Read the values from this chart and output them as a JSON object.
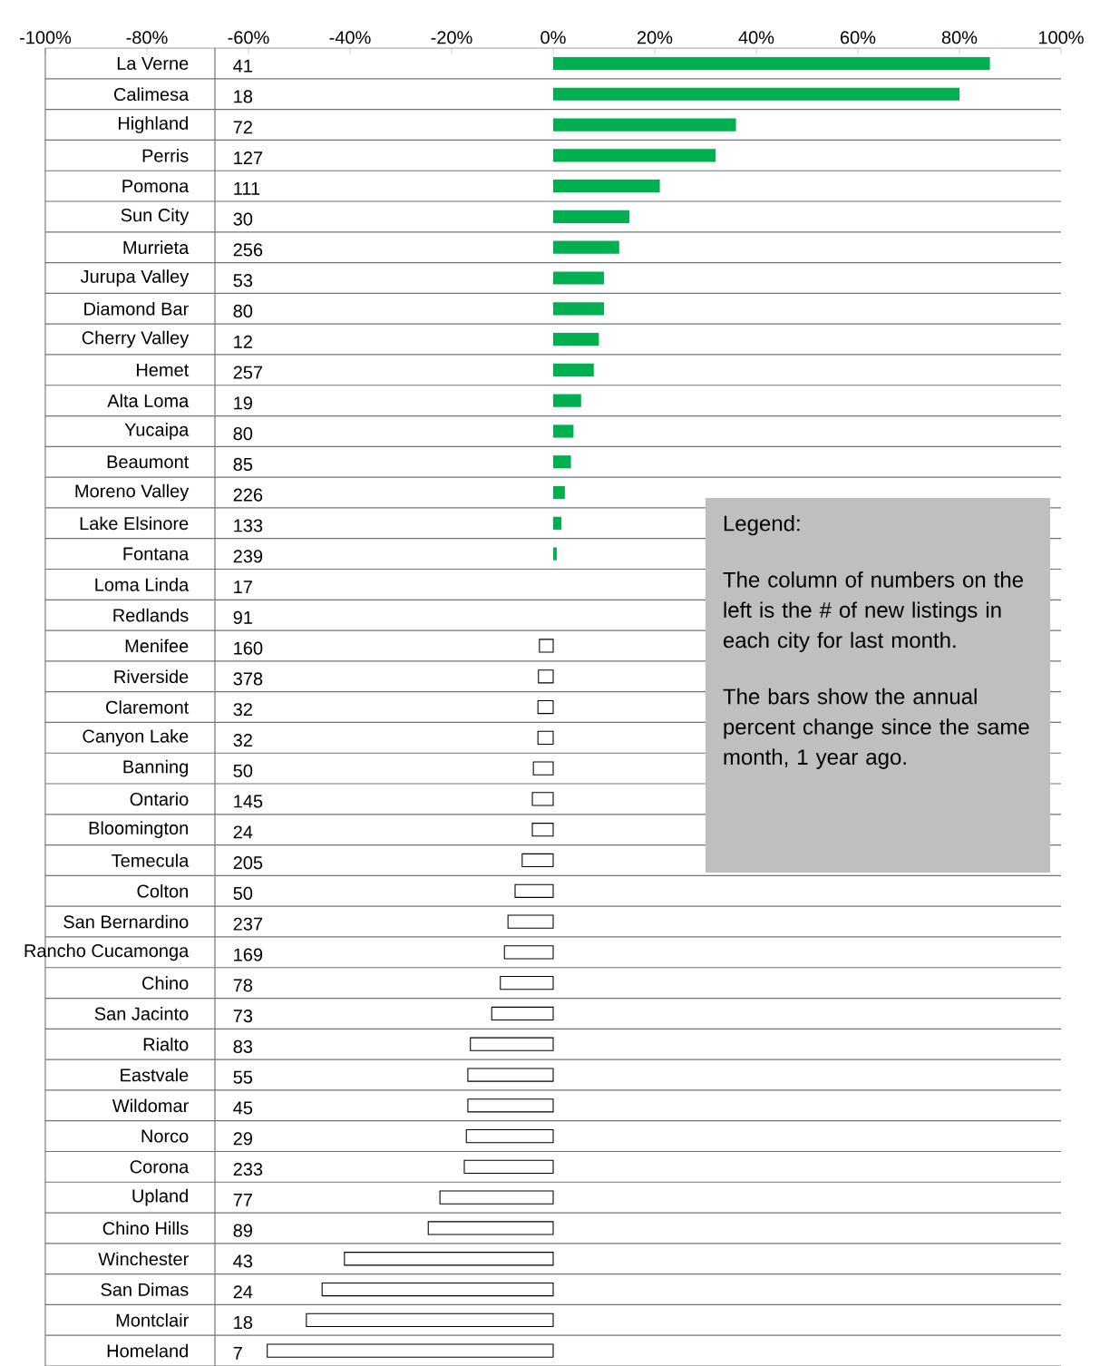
{
  "chart_data": {
    "type": "bar",
    "orientation": "horizontal",
    "categories": [
      "La Verne",
      "Calimesa",
      "Highland",
      "Perris",
      "Pomona",
      "Sun City",
      "Murrieta",
      "Jurupa Valley",
      "Diamond Bar",
      "Cherry Valley",
      "Hemet",
      "Alta Loma",
      "Yucaipa",
      "Beaumont",
      "Moreno Valley",
      "Lake Elsinore",
      "Fontana",
      "Loma Linda",
      "Redlands",
      "Menifee",
      "Riverside",
      "Claremont",
      "Canyon Lake",
      "Banning",
      "Ontario",
      "Bloomington",
      "Temecula",
      "Colton",
      "San Bernardino",
      "Rancho Cucamonga",
      "Chino",
      "San Jacinto",
      "Rialto",
      "Eastvale",
      "Wildomar",
      "Norco",
      "Corona",
      "Upland",
      "Chino Hills",
      "Winchester",
      "San Dimas",
      "Montclair",
      "Homeland"
    ],
    "values": [
      86,
      80,
      36,
      32,
      21,
      15,
      13,
      10,
      10,
      9,
      8,
      5.5,
      4,
      3.5,
      2.3,
      1.6,
      0.7,
      0,
      0,
      -2.7,
      -2.9,
      -3,
      -3,
      -3.9,
      -4.1,
      -4.1,
      -6.1,
      -7.5,
      -8.9,
      -9.6,
      -10.4,
      -12.1,
      -16.3,
      -16.8,
      -16.8,
      -17.1,
      -17.5,
      -22.3,
      -24.6,
      -41.1,
      -45.5,
      -48.6,
      -56.3
    ],
    "colors": [
      "#00b050",
      "#00b050",
      "#00b050",
      "#00b050",
      "#00b050",
      "#00b050",
      "#00b050",
      "#00b050",
      "#00b050",
      "#00b050",
      "#00b050",
      "#00b050",
      "#00b050",
      "#00b050",
      "#00b050",
      "#00b050",
      "#00b050",
      "#00b050",
      "#00b050",
      "#ffffff",
      "#ffffff",
      "#ffffff",
      "#ffffff",
      "#ffffff",
      "#ffffff",
      "#ffffff",
      "#ffffff",
      "#ffffff",
      "#ffffff",
      "#ffffff",
      "#ffffff",
      "#ffffff",
      "#ffffff",
      "#ffffff",
      "#ffffff",
      "#ffffff",
      "#ffffff",
      "#ffffff",
      "#ffffff",
      "#ffffff",
      "#ffffff",
      "#ffffff",
      "#ffffff"
    ],
    "xlim": [
      -100,
      100
    ],
    "xticks": [
      {
        "value": -100,
        "label": "-100%"
      },
      {
        "value": -80,
        "label": "-80%"
      },
      {
        "value": -60,
        "label": "-60%"
      },
      {
        "value": -40,
        "label": "-40%"
      },
      {
        "value": -20,
        "label": "-20%"
      },
      {
        "value": 0,
        "label": "0%"
      },
      {
        "value": 20,
        "label": "20%"
      },
      {
        "value": 40,
        "label": "40%"
      },
      {
        "value": 60,
        "label": "60%"
      },
      {
        "value": 80,
        "label": "80%"
      },
      {
        "value": 100,
        "label": "100%"
      }
    ],
    "grid": "y",
    "annotations": [
      "Legend:",
      "The column of numbers on the left is the # of new listings in each city for last month.",
      "The bars show the annual percent change since the same month, 1 year ago.",
      "41",
      "18",
      "72",
      "127",
      "111",
      "30",
      "256",
      "53",
      "80",
      "12",
      "257",
      "19",
      "80",
      "85",
      "226",
      "133",
      "239",
      "17",
      "91",
      "160",
      "378",
      "32",
      "32",
      "50",
      "145",
      "24",
      "205",
      "50",
      "237",
      "169",
      "78",
      "73",
      "83",
      "55",
      "45",
      "29",
      "233",
      "77",
      "89",
      "43",
      "24",
      "18",
      "7"
    ]
  }
}
